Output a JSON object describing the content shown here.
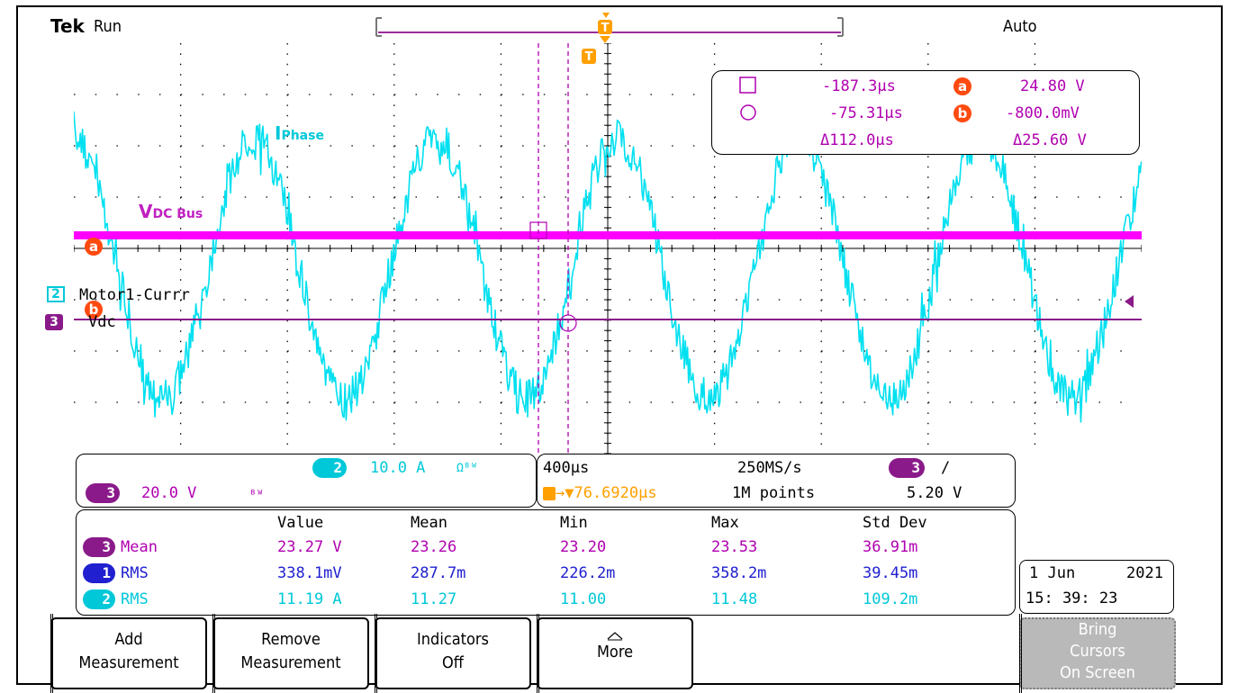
{
  "header": {
    "brand": "Tek",
    "state": "Run",
    "trigger_mode": "Auto"
  },
  "waveform_labels": {
    "iphase_main": "I",
    "iphase_sub": "Phase",
    "vdc_main": "V",
    "vdc_sub": "DC Bus",
    "ch2_name": "Motor1-Currr",
    "ch3_name": "Vdc",
    "ch2_num": "2",
    "ch3_num": "3",
    "cursor_a": "a",
    "cursor_b": "b",
    "trigger_marker": "T"
  },
  "cursor_readout": {
    "t1": "-187.3μs",
    "t2": "-75.31μs",
    "dt": "Δ112.0μs",
    "va": "24.80 V",
    "vb": "-800.0mV",
    "dv": "Δ25.60 V",
    "a_badge": "a",
    "b_badge": "b"
  },
  "channels": {
    "ch2": {
      "num": "2",
      "scale": "10.0 A",
      "extra": "Ωᴮᵂ"
    },
    "ch3": {
      "num": "3",
      "scale": "20.0 V",
      "extra": "ᴮᵂ"
    }
  },
  "timebase": {
    "horizontal": "400μs",
    "sample_rate": "250MS/s",
    "delay": "→▼76.6920μs",
    "record_length": "1M points",
    "trig_channel": "3",
    "trig_slope": "/",
    "trig_level": "5.20 V"
  },
  "measurements": {
    "headers": [
      "Value",
      "Mean",
      "Min",
      "Max",
      "Std Dev"
    ],
    "rows": [
      {
        "ch": "3",
        "type": "Mean",
        "value": "23.27 V",
        "mean": "23.26",
        "min": "23.20",
        "max": "23.53",
        "std": "36.91m"
      },
      {
        "ch": "1",
        "type": "RMS",
        "value": "338.1mV",
        "mean": "287.7m",
        "min": "226.2m",
        "max": "358.2m",
        "std": "39.45m"
      },
      {
        "ch": "2",
        "type": "RMS",
        "value": "11.19 A",
        "mean": "11.27",
        "min": "11.00",
        "max": "11.48",
        "std": "109.2m"
      }
    ]
  },
  "datetime": {
    "date": "1 Jun",
    "year": "2021",
    "time": "15: 39: 23"
  },
  "softkeys": {
    "add_line1": "Add",
    "add_line2": "Measurement",
    "remove_line1": "Remove",
    "remove_line2": "Measurement",
    "indicators_line1": "Indicators",
    "indicators_line2": "Off",
    "more": "More",
    "bring_line1": "Bring",
    "bring_line2": "Cursors",
    "bring_line3": "On Screen"
  },
  "colors": {
    "ch1": "#2020d0",
    "ch2": "#00e0f0",
    "ch3": "#e000e0",
    "ch3_dark": "#8a1a8a",
    "cursor": "#ff4a10",
    "trigger": "#ffa000"
  }
}
